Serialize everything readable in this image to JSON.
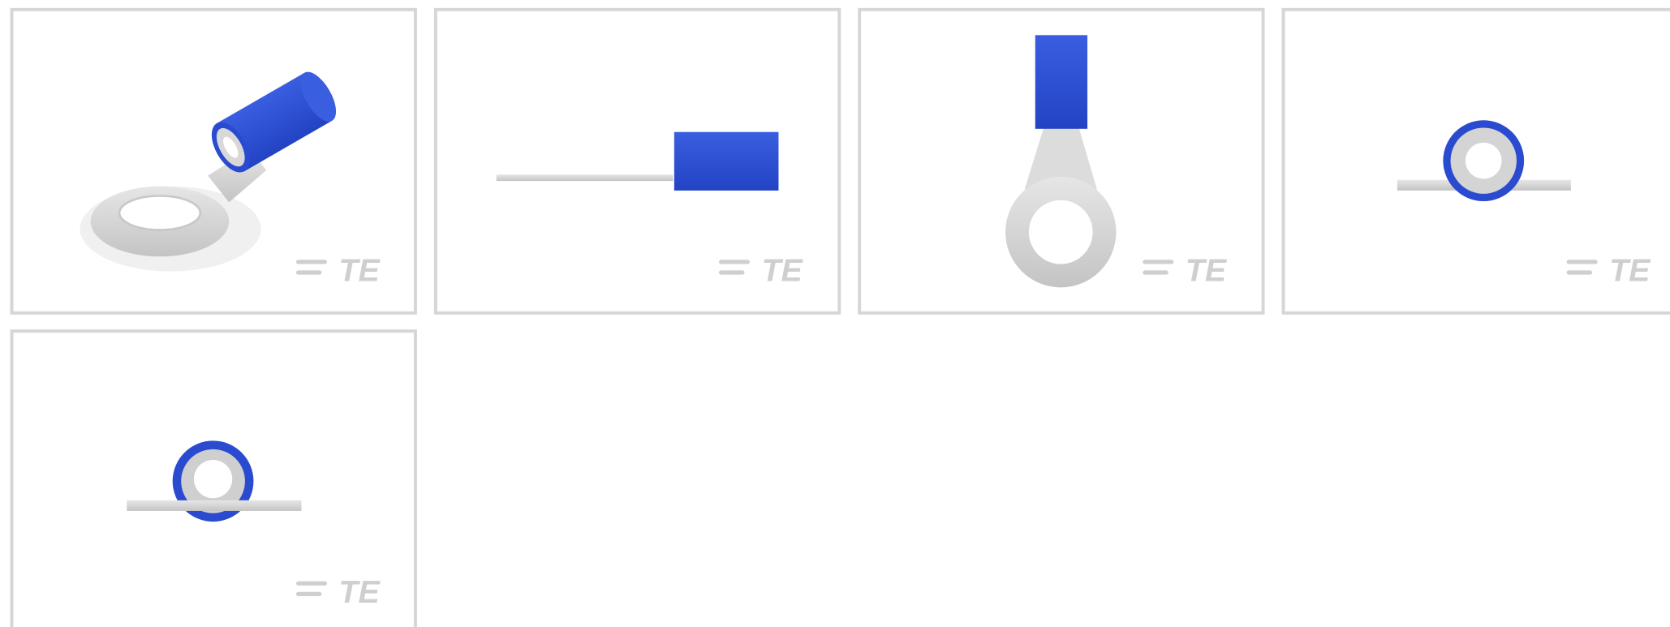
{
  "thumbnails": [
    {
      "logo": "TE"
    },
    {
      "logo": "TE"
    },
    {
      "logo": "TE"
    },
    {
      "logo": "TE"
    },
    {
      "logo": "TE"
    }
  ]
}
